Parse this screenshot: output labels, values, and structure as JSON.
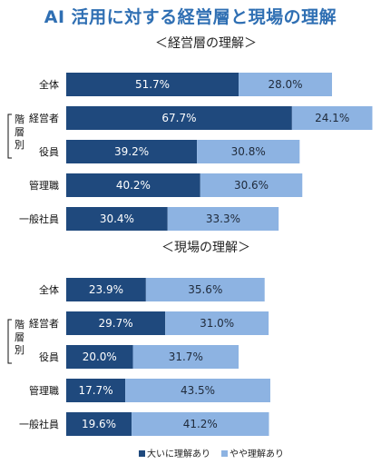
{
  "title": "AI 活用に対する経営層と現場の理解",
  "colors": {
    "strong": "#1f497d",
    "some": "#8db3e2",
    "title": "#2f6fb3"
  },
  "legend": {
    "strong": "大いに理解あり",
    "some": "やや理解あり"
  },
  "side_label": [
    "階",
    "層",
    "別"
  ],
  "chart_data": [
    {
      "type": "bar",
      "orientation": "horizontal",
      "stacked": true,
      "title": "＜経営層の理解＞",
      "categories": [
        "全体",
        "経営者",
        "役員",
        "管理職",
        "一般社員"
      ],
      "series": [
        {
          "name": "大いに理解あり",
          "values": [
            51.7,
            67.7,
            39.2,
            40.2,
            30.4
          ],
          "labels": [
            "51.7%",
            "67.7%",
            "39.2%",
            "40.2%",
            "30.4%"
          ]
        },
        {
          "name": "やや理解あり",
          "values": [
            28.0,
            24.1,
            30.8,
            30.6,
            33.3
          ],
          "labels": [
            "28.0%",
            "24.1%",
            "30.8%",
            "30.6%",
            "33.3%"
          ]
        }
      ],
      "xlim": [
        0,
        100
      ]
    },
    {
      "type": "bar",
      "orientation": "horizontal",
      "stacked": true,
      "title": "＜現場の理解＞",
      "categories": [
        "全体",
        "経営者",
        "役員",
        "管理職",
        "一般社員"
      ],
      "series": [
        {
          "name": "大いに理解あり",
          "values": [
            23.9,
            29.7,
            20.0,
            17.7,
            19.6
          ],
          "labels": [
            "23.9%",
            "29.7%",
            "20.0%",
            "17.7%",
            "19.6%"
          ]
        },
        {
          "name": "やや理解あり",
          "values": [
            35.6,
            31.0,
            31.7,
            43.5,
            41.2
          ],
          "labels": [
            "35.6%",
            "31.0%",
            "31.7%",
            "43.5%",
            "41.2%"
          ]
        }
      ],
      "xlim": [
        0,
        100
      ]
    }
  ]
}
